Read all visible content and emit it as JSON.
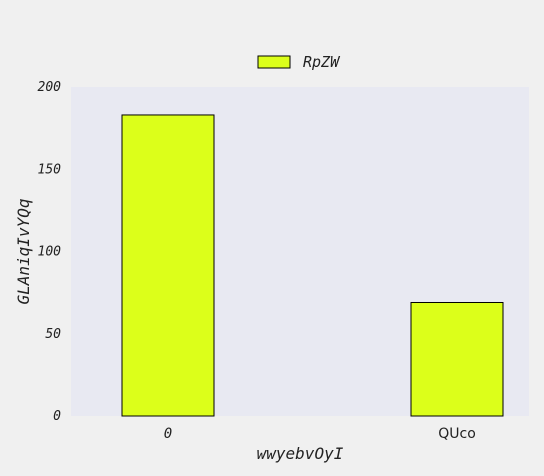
{
  "chart_data": {
    "type": "bar",
    "categories": [
      "0",
      "QUco"
    ],
    "series": [
      {
        "name": "RpZW",
        "values": [
          183,
          69
        ]
      }
    ],
    "xlabel": "wwyebvOyI",
    "ylabel": "GLAniqIvYQq",
    "ylim": [
      0,
      200
    ],
    "yticks": [
      0,
      50,
      100,
      150,
      200
    ],
    "grid": false,
    "legend_position": "top-center",
    "colors": {
      "bar_fill": "#dcff1a",
      "bar_edge": "#000000",
      "plot_bg": "#e8e9f2",
      "page_bg": "#f0f0f0",
      "text": "#222222"
    }
  }
}
